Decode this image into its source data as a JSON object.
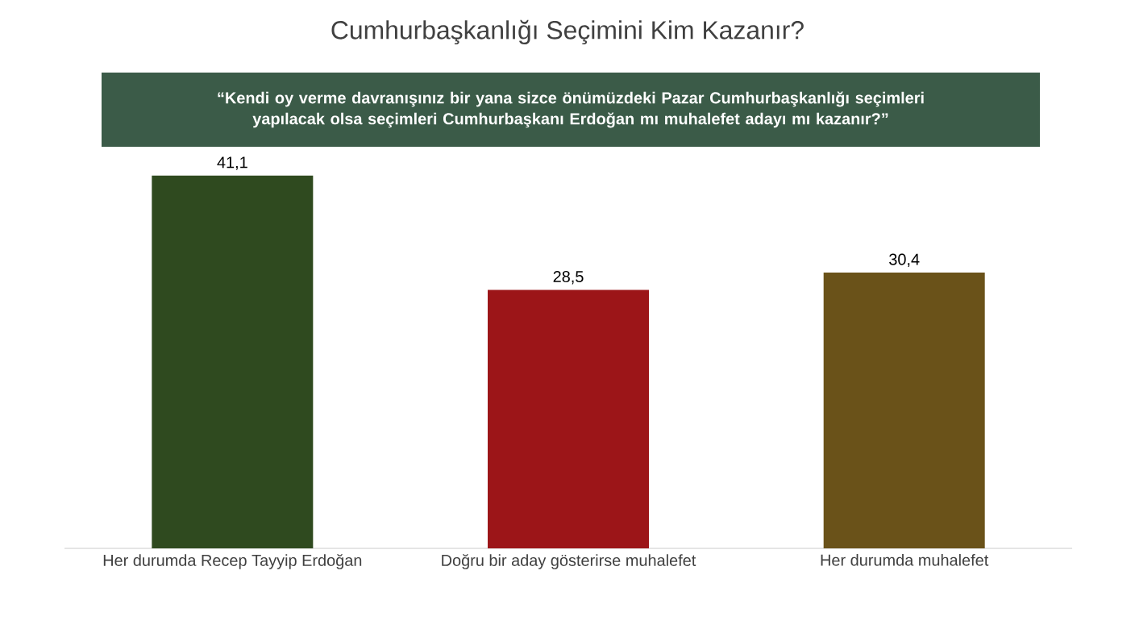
{
  "chart_data": {
    "type": "bar",
    "title": "Cumhurbaşkanlığı Seçimini Kim Kazanır?",
    "subtitle": "“Kendi oy verme davranışınız bir yana sizce önümüzdeki Pazar Cumhurbaşkanlığı seçimleri yapılacak olsa seçimleri Cumhurbaşkanı Erdoğan mı muhalefet adayı mı kazanır?”",
    "categories": [
      "Her durumda Recep Tayyip Erdoğan",
      "Doğru bir aday gösterirse muhalefet",
      "Her durumda muhalefet"
    ],
    "values": [
      41.1,
      28.5,
      30.4
    ],
    "value_labels": [
      "41,1",
      "28,5",
      "30,4"
    ],
    "colors": [
      "#2f4a1f",
      "#9c1518",
      "#6a5219"
    ]
  }
}
